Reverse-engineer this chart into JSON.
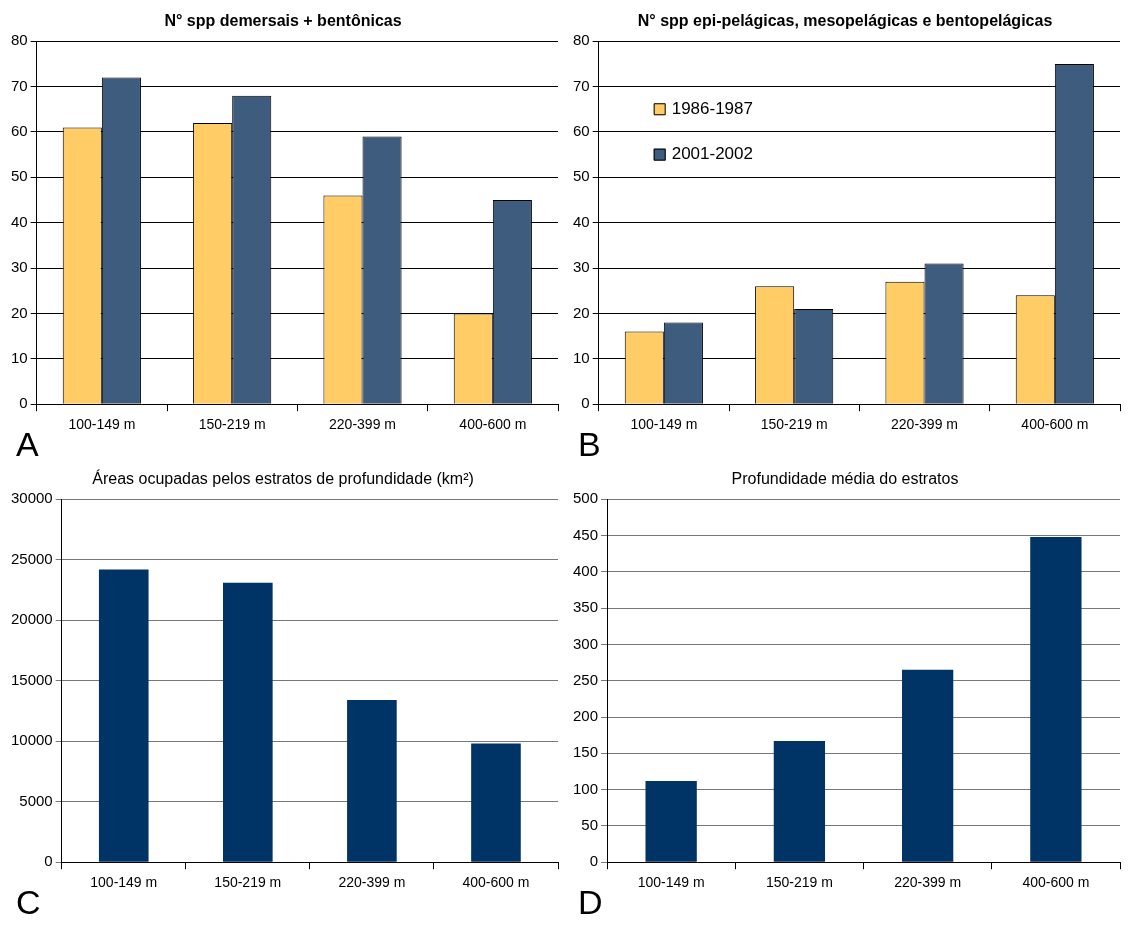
{
  "chart_data": [
    {
      "type": "bar",
      "title": "N° spp demersais + bentônicas",
      "categories": [
        "100-149 m",
        "150-219 m",
        "220-399 m",
        "400-600 m"
      ],
      "series": [
        {
          "color": "#ffcc66",
          "values": [
            61,
            62,
            46,
            20
          ]
        },
        {
          "color": "#3e5c7e",
          "values": [
            72,
            68,
            59,
            45
          ]
        }
      ],
      "ylim": [
        0,
        80
      ],
      "yticks": [
        0,
        10,
        20,
        30,
        40,
        50,
        60,
        70,
        80
      ],
      "grid": "y",
      "legend": false,
      "annotations": [
        "A"
      ]
    },
    {
      "type": "bar",
      "title": "N° spp epi-pelágicas, mesopelágicas e bentopelágicas",
      "categories": [
        "100-149 m",
        "150-219 m",
        "220-399 m",
        "400-600 m"
      ],
      "series": [
        {
          "name": "1986-1987",
          "color": "#ffcc66",
          "values": [
            16,
            26,
            27,
            24
          ]
        },
        {
          "name": "2001-2002",
          "color": "#3e5c7e",
          "values": [
            18,
            21,
            31,
            75
          ]
        }
      ],
      "ylim": [
        0,
        80
      ],
      "yticks": [
        0,
        10,
        20,
        30,
        40,
        50,
        60,
        70,
        80
      ],
      "grid": "y",
      "legend": "top left",
      "annotations": [
        "B"
      ]
    },
    {
      "type": "bar",
      "title": "Áreas ocupadas pelos estratos de profundidade (km²)",
      "categories": [
        "100-149 m",
        "150-219 m",
        "220-399 m",
        "400-600 m"
      ],
      "values": [
        24200,
        23100,
        13400,
        9800
      ],
      "color": "#003366",
      "ylim": [
        0,
        30000
      ],
      "yticks": [
        0,
        5000,
        10000,
        15000,
        20000,
        25000,
        30000
      ],
      "grid": "y",
      "annotations": [
        "C"
      ]
    },
    {
      "type": "bar",
      "title": "Profundidade média do estratos",
      "categories": [
        "100-149 m",
        "150-219 m",
        "220-399 m",
        "400-600 m"
      ],
      "values": [
        112,
        167,
        265,
        448
      ],
      "color": "#003366",
      "ylim": [
        0,
        500
      ],
      "yticks": [
        0,
        50,
        100,
        150,
        200,
        250,
        300,
        350,
        400,
        450,
        500
      ],
      "grid": "y",
      "annotations": [
        "D"
      ]
    }
  ]
}
